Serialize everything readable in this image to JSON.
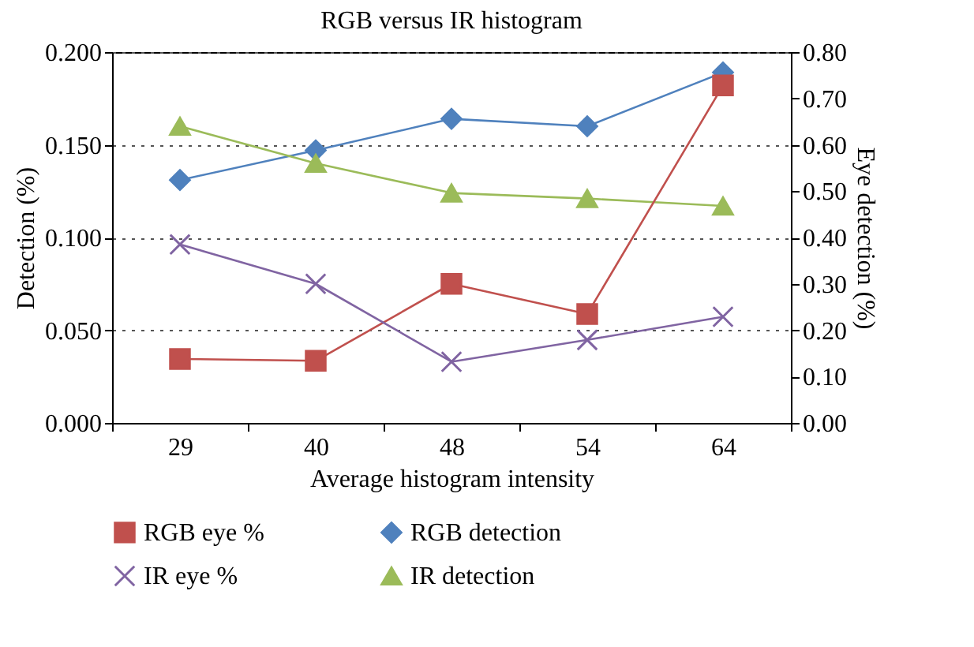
{
  "chart_data": {
    "type": "line",
    "title": "RGB versus IR histogram",
    "xlabel": "Average histogram intensity",
    "ylabel": "Detection (%)",
    "y2label": "Eye detection (%)",
    "categories": [
      "29",
      "40",
      "48",
      "54",
      "64"
    ],
    "series": [
      {
        "name": "RGB eye %",
        "color": "#c0504d",
        "marker": "square",
        "axis": "y2",
        "values": [
          0.138,
          0.134,
          0.3,
          0.235,
          0.728
        ]
      },
      {
        "name": "RGB detection",
        "color": "#4f81bd",
        "marker": "diamond",
        "values": [
          0.131,
          0.147,
          0.164,
          0.16,
          0.189
        ]
      },
      {
        "name": "IR eye %",
        "color": "#8064a2",
        "marker": "cross",
        "axis": "y2",
        "values": [
          0.385,
          0.3,
          0.132,
          0.179,
          0.229
        ]
      },
      {
        "name": "IR detection",
        "color": "#9bbb59",
        "marker": "triangle",
        "values": [
          0.16,
          0.14,
          0.124,
          0.121,
          0.117
        ]
      }
    ],
    "ylim": [
      0,
      0.2
    ],
    "yticks": [
      {
        "value": 0,
        "label": "0.000"
      },
      {
        "value": 0.05,
        "label": "0.050"
      },
      {
        "value": 0.1,
        "label": "0.100"
      },
      {
        "value": 0.15,
        "label": "0.150"
      },
      {
        "value": 0.2,
        "label": "0.200"
      }
    ],
    "y2lim": [
      0,
      0.8
    ],
    "y2ticks": [
      {
        "value": 0,
        "label": "0.00"
      },
      {
        "value": 0.1,
        "label": "0.10"
      },
      {
        "value": 0.2,
        "label": "0.20"
      },
      {
        "value": 0.3,
        "label": "0.30"
      },
      {
        "value": 0.4,
        "label": "0.40"
      },
      {
        "value": 0.5,
        "label": "0.50"
      },
      {
        "value": 0.6,
        "label": "0.60"
      },
      {
        "value": 0.7,
        "label": "0.70"
      },
      {
        "value": 0.8,
        "label": "0.80"
      }
    ],
    "grid": "y",
    "line_style": "solid",
    "legend": "bottom"
  }
}
